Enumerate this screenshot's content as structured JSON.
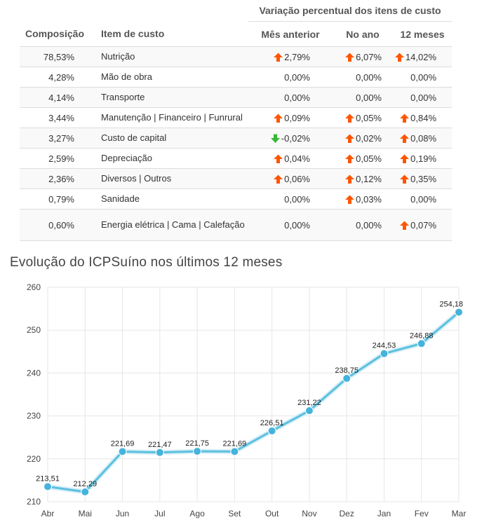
{
  "table": {
    "group_header": "Variação percentual dos itens de custo",
    "columns": {
      "composition": "Composição",
      "item": "Item de custo",
      "prev_month": "Mês anterior",
      "year": "No ano",
      "twelve_months": "12 meses"
    },
    "colors": {
      "up_arrow": "#ff5500",
      "down_arrow": "#33bb33"
    },
    "rows": [
      {
        "composition": "78,53%",
        "item": "Nutrição",
        "prev_month": "2,79%",
        "prev_month_trend": "up",
        "year": "6,07%",
        "year_trend": "up",
        "twelve_months": "14,02%",
        "twelve_months_trend": "up"
      },
      {
        "composition": "4,28%",
        "item": "Mão de obra",
        "prev_month": "0,00%",
        "prev_month_trend": "none",
        "year": "0,00%",
        "year_trend": "none",
        "twelve_months": "0,00%",
        "twelve_months_trend": "none"
      },
      {
        "composition": "4,14%",
        "item": "Transporte",
        "prev_month": "0,00%",
        "prev_month_trend": "none",
        "year": "0,00%",
        "year_trend": "none",
        "twelve_months": "0,00%",
        "twelve_months_trend": "none"
      },
      {
        "composition": "3,44%",
        "item": "Manutenção | Financeiro | Funrural",
        "prev_month": "0,09%",
        "prev_month_trend": "up",
        "year": "0,05%",
        "year_trend": "up",
        "twelve_months": "0,84%",
        "twelve_months_trend": "up"
      },
      {
        "composition": "3,27%",
        "item": "Custo de capital",
        "prev_month": "-0,02%",
        "prev_month_trend": "down",
        "year": "0,02%",
        "year_trend": "up",
        "twelve_months": "0,08%",
        "twelve_months_trend": "up"
      },
      {
        "composition": "2,59%",
        "item": "Depreciação",
        "prev_month": "0,04%",
        "prev_month_trend": "up",
        "year": "0,05%",
        "year_trend": "up",
        "twelve_months": "0,19%",
        "twelve_months_trend": "up"
      },
      {
        "composition": "2,36%",
        "item": "Diversos | Outros",
        "prev_month": "0,06%",
        "prev_month_trend": "up",
        "year": "0,12%",
        "year_trend": "up",
        "twelve_months": "0,35%",
        "twelve_months_trend": "up"
      },
      {
        "composition": "0,79%",
        "item": "Sanidade",
        "prev_month": "0,00%",
        "prev_month_trend": "none",
        "year": "0,03%",
        "year_trend": "up",
        "twelve_months": "0,00%",
        "twelve_months_trend": "none"
      },
      {
        "composition": "0,60%",
        "item": "Energia elétrica | Cama | Calefação",
        "prev_month": "0,00%",
        "prev_month_trend": "none",
        "year": "0,00%",
        "year_trend": "none",
        "twelve_months": "0,07%",
        "twelve_months_trend": "up"
      }
    ]
  },
  "chart_title": "Evolução do ICPSuíno nos últimos 12 meses",
  "chart_data": {
    "type": "line",
    "title": "Evolução do ICPSuíno nos últimos 12 meses",
    "xlabel": "",
    "ylabel": "",
    "categories": [
      "Abr",
      "Mai",
      "Jun",
      "Jul",
      "Ago",
      "Set",
      "Out",
      "Nov",
      "Dez",
      "Jan",
      "Fev",
      "Mar"
    ],
    "values": [
      213.51,
      212.29,
      221.69,
      221.47,
      221.75,
      221.69,
      226.51,
      231.22,
      238.75,
      244.53,
      246.88,
      254.18
    ],
    "value_labels": [
      "213,51",
      "212,29",
      "221,69",
      "221,47",
      "221,75",
      "221,69",
      "226,51",
      "231,22",
      "238,75",
      "244,53",
      "246,88",
      "254,18"
    ],
    "ylim": [
      210,
      260
    ],
    "yticks": [
      210,
      220,
      230,
      240,
      250,
      260
    ],
    "grid": true,
    "legend": "none",
    "colors": {
      "line": "#5bc0de",
      "marker": "#45b3dc",
      "grid": "#e6e6e6"
    }
  }
}
